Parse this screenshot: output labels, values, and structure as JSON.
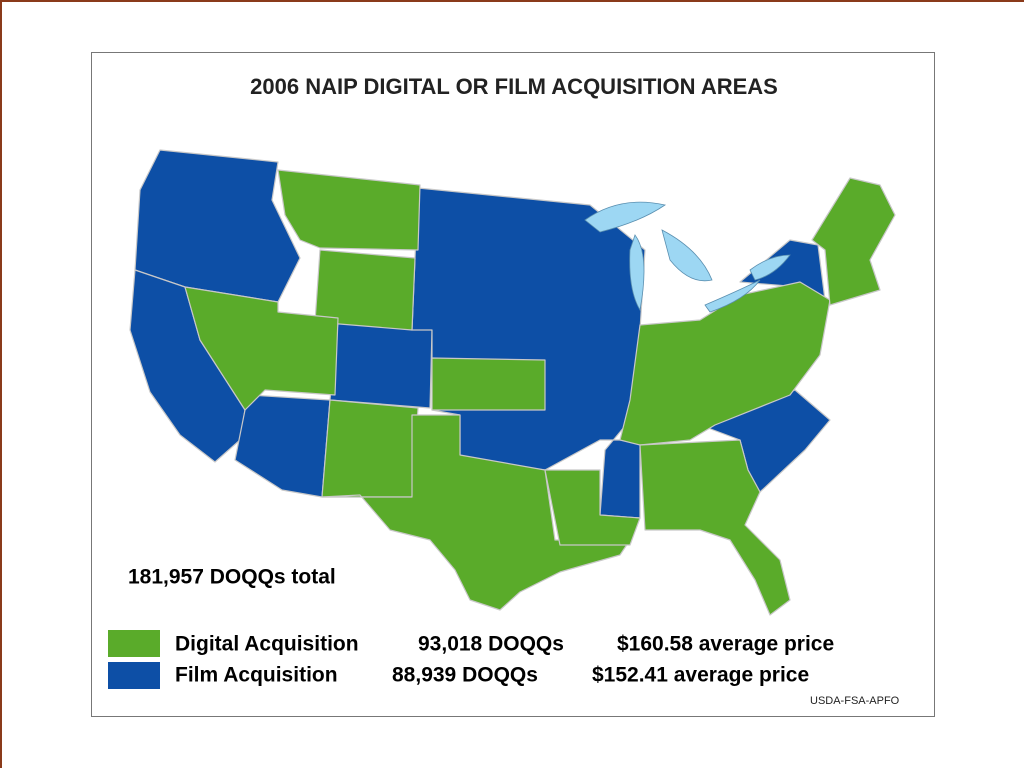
{
  "title": "2006 NAIP DIGITAL OR FILM ACQUISITION AREAS",
  "total": "181,957 DOQQs total",
  "legend": [
    {
      "label": "Digital Acquisition",
      "count": "93,018 DOQQs",
      "price": "$160.58 average price",
      "color": "#5aab2a"
    },
    {
      "label": "Film Acquisition",
      "count": "88,939 DOQQs",
      "price": "$152.41 average price",
      "color": "#0d4fa6"
    }
  ],
  "credit": "USDA-FSA-APFO"
}
